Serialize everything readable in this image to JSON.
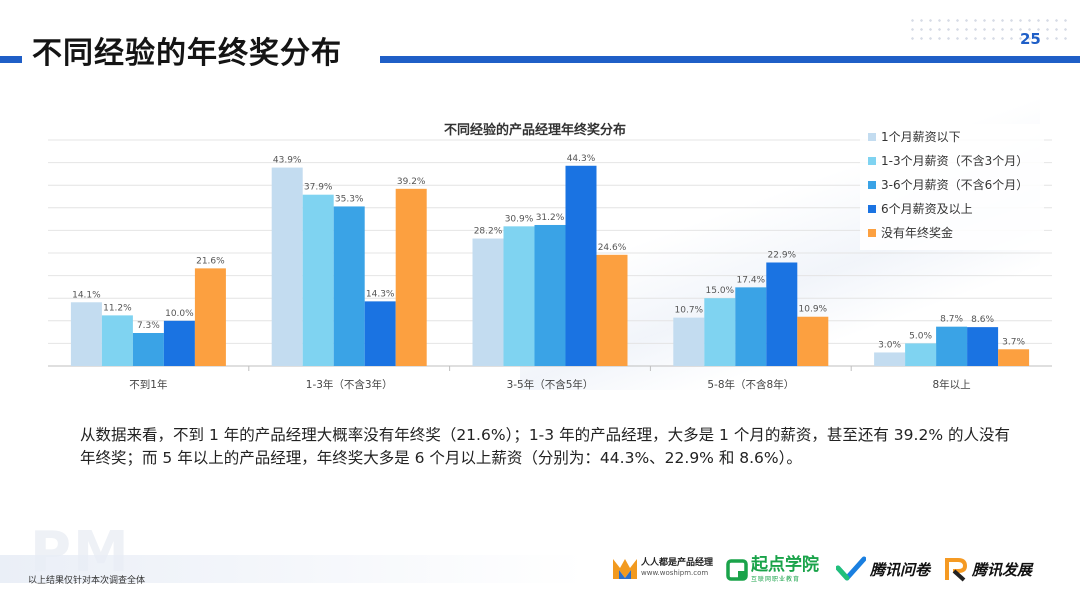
{
  "header": {
    "title": "不同经验的年终奖分布",
    "page_number": "25"
  },
  "chart_data": {
    "type": "bar",
    "title": "不同经验的产品经理年终奖分布",
    "categories": [
      "不到1年",
      "1-3年（不含3年）",
      "3-5年（不含5年）",
      "5-8年（不含8年）",
      "8年以上"
    ],
    "series": [
      {
        "name": "1个月薪资以下",
        "color": "#c3dcf0",
        "values": [
          14.1,
          43.9,
          28.2,
          10.7,
          3.0
        ]
      },
      {
        "name": "1-3个月薪资（不含3个月）",
        "color": "#7fd3f1",
        "values": [
          11.2,
          37.9,
          30.9,
          15.0,
          5.0
        ]
      },
      {
        "name": "3-6个月薪资（不含6个月）",
        "color": "#3aa3e6",
        "values": [
          7.3,
          35.3,
          31.2,
          17.4,
          8.7
        ]
      },
      {
        "name": "6个月薪资及以上",
        "color": "#1a73e2",
        "values": [
          10.0,
          14.3,
          44.3,
          22.9,
          8.6
        ]
      },
      {
        "name": "没有年终奖金",
        "color": "#fca040",
        "values": [
          21.6,
          39.2,
          24.6,
          10.9,
          3.7
        ]
      }
    ],
    "value_suffix": "%",
    "ylim": [
      0,
      50
    ],
    "grid": true,
    "legend_position": "top-right"
  },
  "summary": {
    "text": "从数据来看，不到 1 年的产品经理大概率没有年终奖（21.6%）；1-3 年的产品经理，大多是 1 个月的薪资，甚至还有 39.2% 的人没有年终奖；而 5 年以上的产品经理，年终奖大多是 6 个月以上薪资（分别为：44.3%、22.9% 和 8.6%）。"
  },
  "footer": {
    "watermark": "PM",
    "note": "以上结果仅针对本次调查全体",
    "logos": {
      "woshipm_name": "人人都是产品经理",
      "woshipm_url": "www.woshipm.com",
      "qidian_name": "起点学院",
      "qidian_sub": "互联网职业教育",
      "wenjuan_name": "腾讯问卷",
      "fazhan_name": "腾讯发展"
    }
  }
}
